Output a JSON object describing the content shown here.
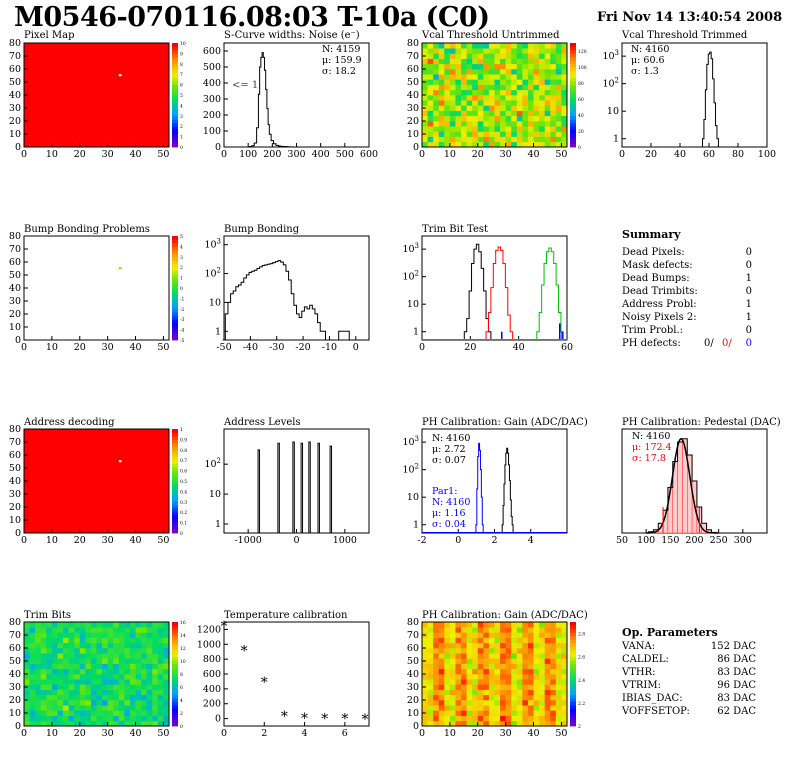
{
  "header": {
    "title": "M0546-070116.08:03 T-10a (C0)",
    "date": "Fri Nov 14 13:40:54 2008"
  },
  "colors": {
    "hist_black": "#000000",
    "hist_red": "#ff0000",
    "hist_green": "#00c000",
    "hist_blue": "#0000ff",
    "pixel_ok": "#ff0000",
    "fit_red": "#ff0000"
  },
  "panels": {
    "pixel_map": {
      "title": "Pixel Map"
    },
    "scurve": {
      "title": "S-Curve widths: Noise (e⁻)",
      "n": "N: 4159",
      "mu": "μ: 159.9",
      "sigma": "σ: 18.2",
      "annot": "<= 1"
    },
    "vcal_untrimmed": {
      "title": "Vcal Threshold Untrimmed"
    },
    "vcal_trimmed": {
      "title": "Vcal Threshold Trimmed",
      "n": "N: 4160",
      "mu": "μ: 60.6",
      "sigma": "σ:  1.3"
    },
    "bump_problems": {
      "title": "Bump Bonding Problems"
    },
    "bump_bonding": {
      "title": "Bump Bonding"
    },
    "trim_bit_test": {
      "title": "Trim Bit Test"
    },
    "address_decoding": {
      "title": "Address decoding"
    },
    "address_levels": {
      "title": "Address Levels"
    },
    "ph_gain": {
      "title": "PH Calibration: Gain (ADC/DAC)",
      "n": "N: 4160",
      "mu": "μ: 2.72",
      "sigma": "σ: 0.07",
      "par_title": "Par1:",
      "par_n": "N: 4160",
      "par_mu": "μ: 1.16",
      "par_sigma": "σ: 0.04"
    },
    "ph_pedestal": {
      "title": "PH Calibration: Pedestal (DAC)",
      "n": "N: 4160",
      "mu": "μ: 172.4",
      "sigma": "σ: 17.8"
    },
    "trim_bits": {
      "title": "Trim Bits"
    },
    "temperature": {
      "title": "Temperature calibration"
    },
    "ph_gain_map": {
      "title": "PH Calibration: Gain (ADC/DAC)"
    }
  },
  "summary": {
    "title": "Summary",
    "rows": [
      {
        "label": "Dead Pixels:",
        "value": "0"
      },
      {
        "label": "Mask defects:",
        "value": "0"
      },
      {
        "label": "Dead Bumps:",
        "value": "1"
      },
      {
        "label": "Dead Trimbits:",
        "value": "0"
      },
      {
        "label": "Address Probl:",
        "value": "1"
      },
      {
        "label": "Noisy Pixels 2:",
        "value": "1"
      },
      {
        "label": "Trim Probl.:",
        "value": "0"
      }
    ],
    "ph_defects": {
      "label": "PH defects:",
      "v1": "0/",
      "v2": "0/",
      "v3": "0"
    }
  },
  "op_parameters": {
    "title": "Op. Parameters",
    "rows": [
      {
        "label": "VANA:",
        "value": "152 DAC"
      },
      {
        "label": "CALDEL:",
        "value": "86 DAC"
      },
      {
        "label": "VTHR:",
        "value": "83 DAC"
      },
      {
        "label": "VTRIM:",
        "value": "96 DAC"
      },
      {
        "label": "IBIAS_DAC:",
        "value": "83 DAC"
      },
      {
        "label": "VOFFSETOP:",
        "value": "62 DAC"
      }
    ]
  },
  "chart_data": [
    {
      "id": "pixel_map",
      "type": "heatmap",
      "title": "Pixel Map",
      "xlim": [
        0,
        52
      ],
      "ylim": [
        0,
        80
      ],
      "xticks": [
        0,
        10,
        20,
        30,
        40,
        50
      ],
      "yticks": [
        0,
        10,
        20,
        30,
        40,
        50,
        60,
        70,
        80
      ],
      "zlim": [
        0,
        10
      ],
      "zticks": [
        0,
        1,
        2,
        3,
        4,
        5,
        6,
        7,
        8,
        9,
        10
      ],
      "uniform_value": 10,
      "hot_pixels": [
        {
          "x": 34,
          "y": 55,
          "value": 0
        }
      ]
    },
    {
      "id": "scurve",
      "type": "line",
      "title": "S-Curve widths: Noise (e⁻)",
      "xlim": [
        0,
        600
      ],
      "ylim": [
        0,
        650
      ],
      "xticks": [
        0,
        100,
        200,
        300,
        400,
        500,
        600
      ],
      "yticks": [
        0,
        100,
        200,
        300,
        400,
        500,
        600
      ],
      "x": [
        100,
        110,
        120,
        130,
        140,
        145,
        150,
        155,
        160,
        165,
        170,
        175,
        180,
        185,
        190,
        200,
        210,
        220,
        230,
        240,
        250,
        260,
        270,
        280,
        290,
        300
      ],
      "values": [
        0,
        3,
        8,
        25,
        120,
        330,
        500,
        560,
        590,
        560,
        480,
        360,
        240,
        140,
        80,
        40,
        20,
        10,
        6,
        4,
        3,
        2,
        1,
        1,
        0,
        0
      ]
    },
    {
      "id": "vcal_untrimmed",
      "type": "heatmap",
      "title": "Vcal Threshold Untrimmed",
      "xlim": [
        0,
        52
      ],
      "ylim": [
        0,
        80
      ],
      "xticks": [
        0,
        10,
        20,
        30,
        40,
        50
      ],
      "yticks": [
        0,
        10,
        20,
        30,
        40,
        50,
        60,
        70,
        80
      ],
      "zlim": [
        0,
        130
      ],
      "zticks": [
        0,
        20,
        40,
        60,
        80,
        100,
        120
      ],
      "mean": 82,
      "spread": 18
    },
    {
      "id": "vcal_trimmed",
      "type": "line",
      "title": "Vcal Threshold Trimmed",
      "log_y": true,
      "xlim": [
        0,
        100
      ],
      "ylim": [
        0.5,
        3000
      ],
      "xticks": [
        0,
        20,
        40,
        60,
        80,
        100
      ],
      "yticks": [
        1,
        10,
        100,
        1000
      ],
      "x": [
        56,
        57,
        58,
        59,
        60,
        61,
        62,
        63,
        64,
        65,
        66
      ],
      "values": [
        1,
        5,
        60,
        500,
        1200,
        1400,
        800,
        150,
        20,
        3,
        1
      ]
    },
    {
      "id": "bump_problems",
      "type": "heatmap",
      "title": "Bump Bonding Problems",
      "xlim": [
        0,
        52
      ],
      "ylim": [
        0,
        80
      ],
      "xticks": [
        0,
        10,
        20,
        30,
        40,
        50
      ],
      "yticks": [
        0,
        10,
        20,
        30,
        40,
        50,
        60,
        70,
        80
      ],
      "zlim": [
        -5,
        5
      ],
      "zticks": [
        -5,
        -4,
        -3,
        -2,
        -1,
        0,
        1,
        2,
        3,
        4,
        5
      ],
      "uniform_value": null,
      "hot_pixels": [
        {
          "x": 34,
          "y": 55,
          "value": 1
        }
      ]
    },
    {
      "id": "bump_bonding",
      "type": "line",
      "title": "Bump Bonding",
      "log_y": true,
      "xlim": [
        -50,
        5
      ],
      "ylim": [
        0.5,
        2000
      ],
      "xticks": [
        -50,
        -40,
        -30,
        -20,
        -10,
        0
      ],
      "yticks": [
        1,
        10,
        100,
        1000
      ],
      "x": [
        -50,
        -49,
        -48,
        -47,
        -46,
        -45,
        -44,
        -43,
        -42,
        -41,
        -40,
        -39,
        -38,
        -37,
        -36,
        -35,
        -34,
        -33,
        -32,
        -31,
        -30,
        -29,
        -28,
        -27,
        -26,
        -25,
        -24,
        -23,
        -22,
        -21,
        -20,
        -19,
        -18,
        -17,
        -16,
        -15,
        -14,
        -13,
        -12,
        -11,
        -10,
        -3,
        -2
      ],
      "values": [
        0,
        4,
        10,
        20,
        25,
        35,
        40,
        50,
        70,
        90,
        110,
        120,
        130,
        150,
        170,
        190,
        200,
        210,
        220,
        240,
        260,
        280,
        250,
        200,
        120,
        60,
        20,
        8,
        4,
        3,
        5,
        7,
        6,
        8,
        6,
        4,
        2,
        1,
        1,
        0,
        0,
        1,
        0
      ]
    },
    {
      "id": "trim_bit_test",
      "type": "line",
      "title": "Trim Bit Test",
      "log_y": true,
      "xlim": [
        0,
        60
      ],
      "ylim": [
        0.5,
        3000
      ],
      "xticks": [
        0,
        20,
        40,
        60
      ],
      "yticks": [
        1,
        10,
        100,
        1000
      ],
      "series": [
        {
          "color": "black",
          "x": [
            18,
            19,
            20,
            21,
            22,
            23,
            24,
            25,
            26,
            27,
            28
          ],
          "values": [
            1,
            3,
            30,
            300,
            1000,
            1500,
            800,
            200,
            30,
            3,
            1
          ]
        },
        {
          "color": "red",
          "x": [
            27,
            28,
            29,
            30,
            31,
            32,
            33,
            34,
            35,
            36,
            37
          ],
          "values": [
            1,
            5,
            40,
            300,
            900,
            1200,
            900,
            300,
            40,
            4,
            1
          ]
        },
        {
          "color": "green",
          "x": [
            48,
            49,
            50,
            51,
            52,
            53,
            54,
            55,
            56,
            57,
            58
          ],
          "values": [
            1,
            5,
            50,
            300,
            800,
            1100,
            800,
            300,
            50,
            5,
            1
          ]
        },
        {
          "color": "blue",
          "x": [
            33,
            57,
            58
          ],
          "values": [
            1,
            2,
            1
          ]
        }
      ]
    },
    {
      "id": "address_decoding",
      "type": "heatmap",
      "title": "Address decoding",
      "xlim": [
        0,
        52
      ],
      "ylim": [
        0,
        80
      ],
      "xticks": [
        0,
        10,
        20,
        30,
        40,
        50
      ],
      "yticks": [
        0,
        10,
        20,
        30,
        40,
        50,
        60,
        70,
        80
      ],
      "zlim": [
        0,
        1
      ],
      "zticks": [
        0,
        0.1,
        0.2,
        0.3,
        0.4,
        0.5,
        0.6,
        0.7,
        0.8,
        0.9,
        1
      ],
      "uniform_value": 1,
      "hot_pixels": [
        {
          "x": 34,
          "y": 55,
          "value": 0
        }
      ]
    },
    {
      "id": "address_levels",
      "type": "line",
      "title": "Address Levels",
      "log_y": true,
      "xlim": [
        -1500,
        1500
      ],
      "ylim": [
        0.5,
        1500
      ],
      "xticks": [
        -1000,
        0,
        1000
      ],
      "yticks": [
        1,
        10,
        100
      ],
      "peaks": [
        {
          "x": -780,
          "height": 300
        },
        {
          "x": -370,
          "height": 500
        },
        {
          "x": -60,
          "height": 550
        },
        {
          "x": 110,
          "height": 500
        },
        {
          "x": 270,
          "height": 550
        },
        {
          "x": 460,
          "height": 500
        },
        {
          "x": 710,
          "height": 400
        }
      ]
    },
    {
      "id": "ph_gain",
      "type": "line",
      "title": "PH Calibration: Gain (ADC/DAC)",
      "log_y": true,
      "xlim": [
        -2,
        6
      ],
      "ylim": [
        0.5,
        3000
      ],
      "xticks": [
        -2,
        0,
        2,
        4
      ],
      "yticks": [
        1,
        10,
        100,
        1000
      ],
      "series": [
        {
          "color": "black",
          "x": [
            2.45,
            2.5,
            2.55,
            2.6,
            2.65,
            2.7,
            2.75,
            2.8,
            2.85,
            2.9,
            2.95,
            3.0
          ],
          "values": [
            1,
            5,
            30,
            150,
            400,
            600,
            400,
            150,
            40,
            8,
            2,
            1
          ]
        },
        {
          "color": "blue",
          "x": [
            1.0,
            1.05,
            1.1,
            1.15,
            1.2,
            1.25,
            1.3,
            1.35
          ],
          "values": [
            1,
            20,
            300,
            900,
            500,
            100,
            10,
            1
          ]
        }
      ]
    },
    {
      "id": "ph_pedestal",
      "type": "line",
      "title": "PH Calibration: Pedestal (DAC)",
      "xlim": [
        50,
        350
      ],
      "ylim": [
        0,
        160
      ],
      "xticks": [
        50,
        100,
        150,
        200,
        250,
        300
      ],
      "yticks": [],
      "x": [
        110,
        120,
        130,
        140,
        150,
        160,
        170,
        180,
        190,
        200,
        210,
        220,
        230,
        240
      ],
      "values": [
        2,
        5,
        15,
        35,
        70,
        110,
        140,
        145,
        120,
        80,
        40,
        15,
        5,
        1
      ],
      "fit_mean": 172.4,
      "fit_sigma": 17.8
    },
    {
      "id": "trim_bits",
      "type": "heatmap",
      "title": "Trim Bits",
      "xlim": [
        0,
        52
      ],
      "ylim": [
        0,
        80
      ],
      "xticks": [
        0,
        10,
        20,
        30,
        40,
        50
      ],
      "yticks": [
        0,
        10,
        20,
        30,
        40,
        50,
        60,
        70,
        80
      ],
      "zlim": [
        0,
        16
      ],
      "zticks": [
        0,
        2,
        4,
        6,
        8,
        10,
        12,
        14,
        16
      ],
      "mean": 7.5,
      "spread": 1.4
    },
    {
      "id": "temperature",
      "type": "scatter",
      "title": "Temperature calibration",
      "xlim": [
        0,
        7.2
      ],
      "ylim": [
        -100,
        1300
      ],
      "xticks": [
        0,
        2,
        4,
        6
      ],
      "yticks": [
        0,
        200,
        400,
        600,
        800,
        1000,
        1200
      ],
      "x": [
        0,
        1,
        2,
        3,
        4,
        5,
        6,
        7
      ],
      "values": [
        1230,
        900,
        480,
        20,
        -5,
        -10,
        -15,
        -20
      ]
    },
    {
      "id": "ph_gain_map",
      "type": "heatmap",
      "title": "PH Calibration: Gain (ADC/DAC)",
      "xlim": [
        0,
        52
      ],
      "ylim": [
        0,
        80
      ],
      "xticks": [
        0,
        10,
        20,
        30,
        40,
        50
      ],
      "yticks": [
        0,
        10,
        20,
        30,
        40,
        50,
        60,
        70,
        80
      ],
      "zlim": [
        2.0,
        2.9
      ],
      "zticks": [
        2.0,
        2.2,
        2.4,
        2.6,
        2.8
      ],
      "mean": 2.72,
      "spread": 0.07
    }
  ]
}
